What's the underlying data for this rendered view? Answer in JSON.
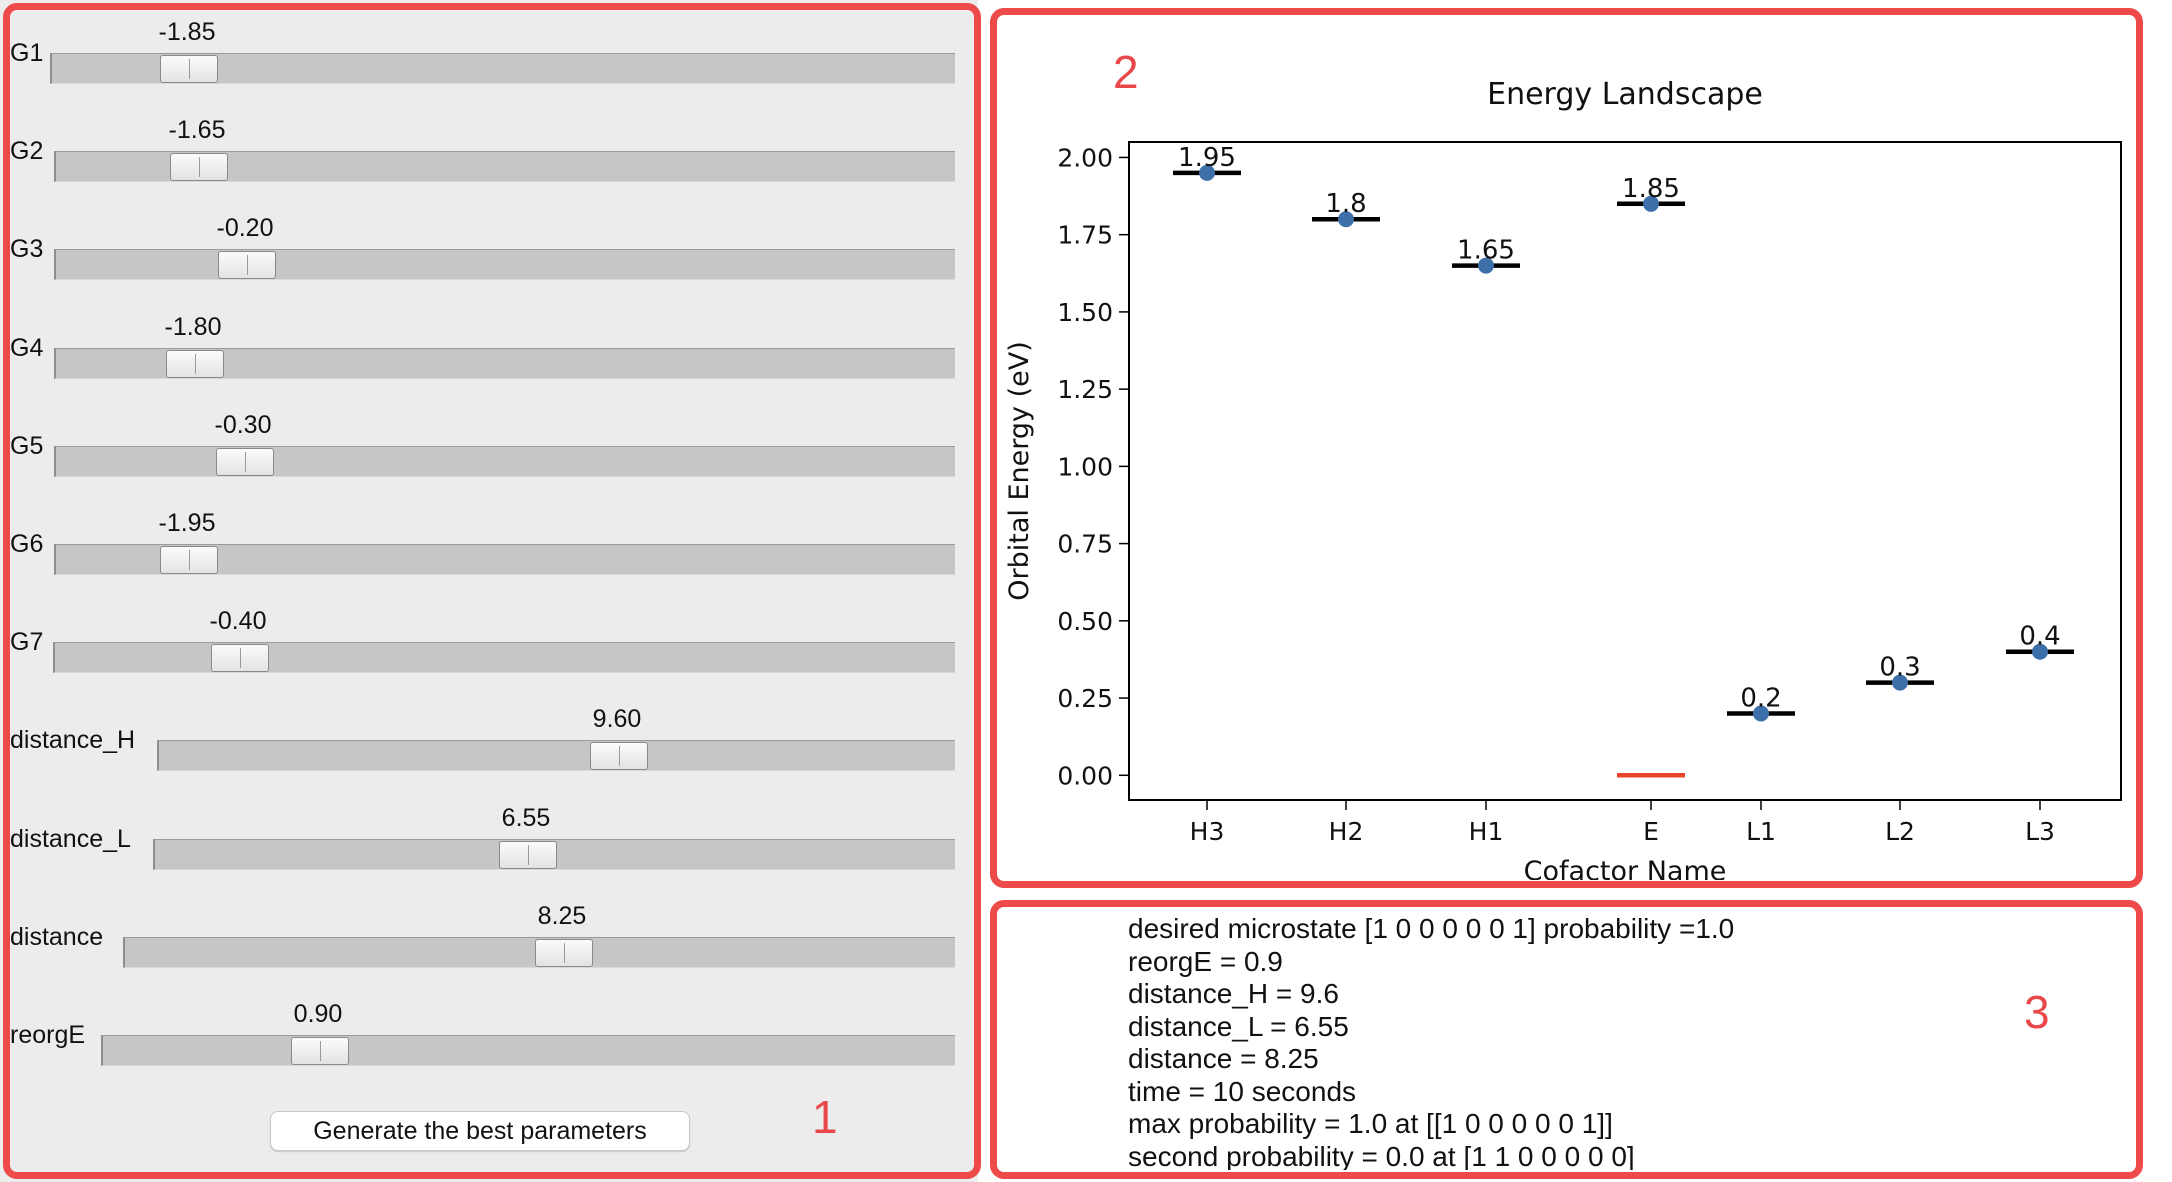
{
  "sliders": [
    {
      "label": "G1",
      "value": "-1.85"
    },
    {
      "label": "G2",
      "value": "-1.65"
    },
    {
      "label": "G3",
      "value": "-0.20"
    },
    {
      "label": "G4",
      "value": "-1.80"
    },
    {
      "label": "G5",
      "value": "-0.30"
    },
    {
      "label": "G6",
      "value": "-1.95"
    },
    {
      "label": "G7",
      "value": "-0.40"
    },
    {
      "label": "distance_H",
      "value": "9.60"
    },
    {
      "label": "distance_L",
      "value": "6.55"
    },
    {
      "label": "distance",
      "value": "8.25"
    },
    {
      "label": "reorgE",
      "value": "0.90"
    }
  ],
  "generate_button_label": "Generate the best parameters",
  "region_labels": [
    "1",
    "2",
    "3"
  ],
  "chart_data": {
    "type": "scatter",
    "title": "Energy Landscape",
    "xlabel": "Cofactor Name",
    "ylabel": "Orbital Energy (eV)",
    "categories": [
      "H3",
      "H2",
      "H1",
      "E",
      "L1",
      "L2",
      "L3"
    ],
    "values": [
      1.95,
      1.8,
      1.65,
      1.85,
      0.2,
      0.3,
      0.4
    ],
    "point_labels": [
      "1.95",
      "1.8",
      "1.65",
      "1.85",
      "0.2",
      "0.3",
      "0.4"
    ],
    "extra_level": {
      "category": "E",
      "value": 0.0,
      "color": "#e8452c"
    },
    "ylim": [
      -0.08,
      2.05
    ],
    "yticks": [
      "0.00",
      "0.25",
      "0.50",
      "0.75",
      "1.00",
      "1.25",
      "1.50",
      "1.75",
      "2.00"
    ],
    "point_color": "#3d6fa8",
    "level_color": "#000000",
    "grid": false,
    "legend": "none"
  },
  "info_lines": [
    "desired microstate [1 0 0 0 0 0 1] probability =1.0",
    "reorgE = 0.9",
    "distance_H = 9.6",
    "distance_L = 6.55",
    "distance = 8.25",
    "time = 10 seconds",
    "max probability = 1.0 at [[1 0 0 0 0 0 1]]",
    "second probability = 0.0 at [1 1 0 0 0 0 0]"
  ]
}
